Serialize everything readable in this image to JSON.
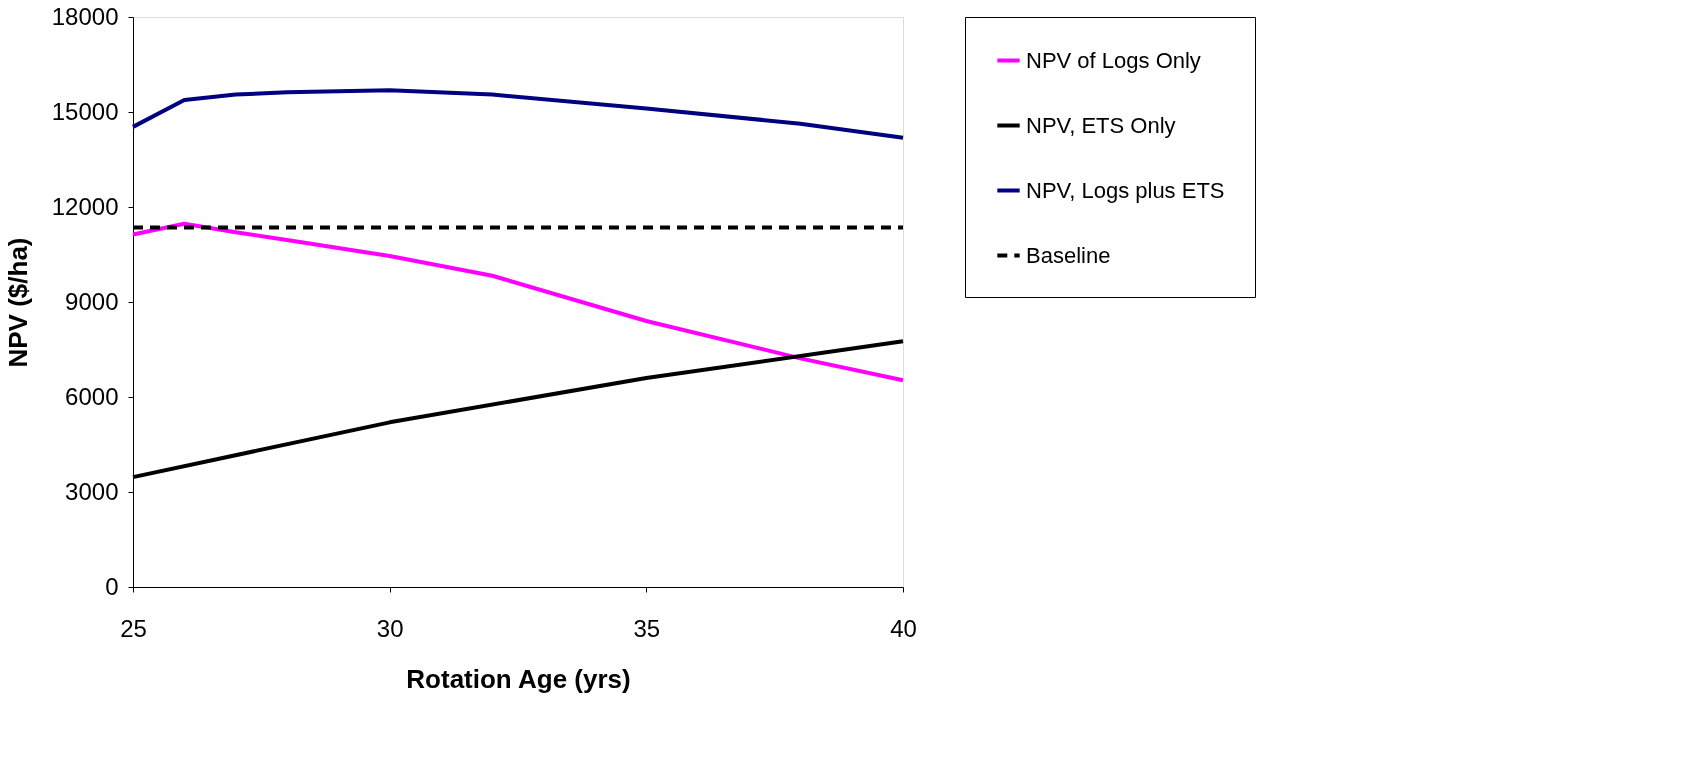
{
  "chart_data": {
    "type": "line",
    "xlabel": "Rotation Age (yrs)",
    "ylabel": "NPV ($/ha)",
    "xlim": [
      25,
      40
    ],
    "xticks": [
      25,
      30,
      35,
      40
    ],
    "ylim": [
      0,
      18000
    ],
    "yticks": [
      0,
      3000,
      6000,
      9000,
      12000,
      15000,
      18000
    ],
    "grid": false,
    "legend": "right",
    "marker": "none",
    "series": [
      {
        "name": "NPV of Logs Only",
        "color": "#ff00ff",
        "line_style": "solid",
        "x": [
          25,
          26,
          27,
          28,
          30,
          32,
          35,
          38,
          40
        ],
        "values": [
          11130,
          11470,
          11200,
          10960,
          10450,
          9830,
          8400,
          7220,
          6530
        ]
      },
      {
        "name": "NPV, ETS Only",
        "color": "#000000",
        "line_style": "solid",
        "x": [
          25,
          30,
          35,
          40
        ],
        "values": [
          3470,
          5200,
          6600,
          7760
        ]
      },
      {
        "name": "NPV, Logs plus ETS",
        "color": "#000080",
        "line_style": "solid",
        "x": [
          25,
          26,
          27,
          28,
          30,
          32,
          35,
          38,
          40
        ],
        "values": [
          14530,
          15380,
          15550,
          15620,
          15690,
          15550,
          15110,
          14630,
          14190
        ]
      },
      {
        "name": "Baseline",
        "color": "#000000",
        "line_style": "dashed",
        "x": [
          25,
          40
        ],
        "values": [
          11350,
          11350
        ]
      }
    ]
  }
}
